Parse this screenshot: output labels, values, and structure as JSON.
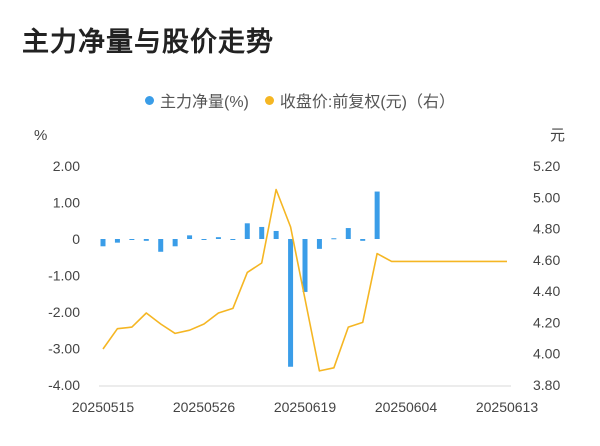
{
  "title": "主力净量与股价走势",
  "colors": {
    "bar": "#3a9de8",
    "line": "#f5b623"
  },
  "chart_data": {
    "type": "bar+line",
    "legend": [
      "主力净量(%)",
      "收盘价:前复权(元)（右）"
    ],
    "left_unit": "%",
    "right_unit": "元",
    "left_ticks": [
      "2.00",
      "1.00",
      "0",
      "-1.00",
      "-2.00",
      "-3.00",
      "-4.00"
    ],
    "right_ticks": [
      "5.20",
      "5.00",
      "4.80",
      "4.60",
      "4.40",
      "4.20",
      "4.00",
      "3.80"
    ],
    "ylim_left": [
      -4,
      2
    ],
    "ylim_right": [
      3.8,
      5.2
    ],
    "x_labels": [
      "20250515",
      "20250526",
      "20250619",
      "20250604",
      "20250613"
    ],
    "x_label_index": [
      0,
      7,
      14,
      21,
      28
    ],
    "series": [
      {
        "name": "主力净量(%)",
        "type": "bar",
        "values": [
          -0.2,
          -0.1,
          0.0,
          -0.05,
          -0.35,
          -0.2,
          0.1,
          -0.02,
          0.05,
          0.0,
          0.43,
          0.33,
          0.22,
          -3.5,
          -1.45,
          -0.27,
          0.02,
          0.3,
          -0.05,
          1.3,
          null,
          null,
          null,
          null,
          null,
          null,
          null,
          null,
          null
        ]
      },
      {
        "name": "收盘价:前复权(元)（右）",
        "type": "line",
        "values": [
          4.03,
          4.16,
          4.17,
          4.26,
          4.19,
          4.13,
          4.15,
          4.19,
          4.26,
          4.29,
          4.52,
          4.58,
          5.05,
          4.81,
          4.35,
          3.89,
          3.91,
          4.17,
          4.2,
          4.64,
          4.59,
          4.59,
          4.59,
          4.59,
          4.59,
          4.59,
          4.59,
          4.59,
          4.59
        ]
      }
    ]
  }
}
